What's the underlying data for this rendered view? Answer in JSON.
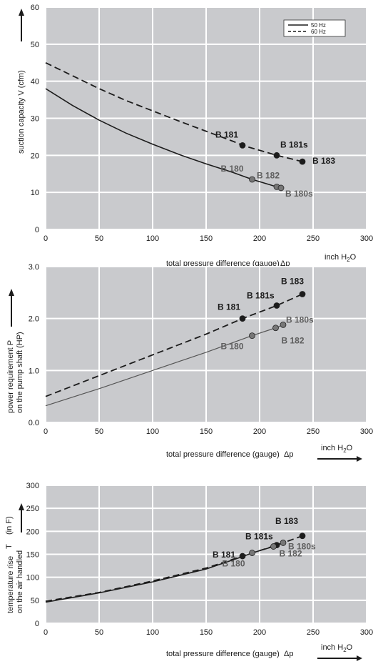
{
  "chart_data": [
    {
      "type": "line",
      "ylabel": "suction capacity V (cfm)",
      "xlabel": "total pressure difference (gauge)",
      "xlabel_symbol": "Δp",
      "unit": "inch H2O",
      "xlim": [
        0,
        300
      ],
      "ylim": [
        0,
        60
      ],
      "xticks": [
        0,
        50,
        100,
        150,
        200,
        250,
        300
      ],
      "yticks": [
        0,
        10,
        20,
        30,
        40,
        50,
        60
      ],
      "grid": true,
      "legend": {
        "position": "top-right",
        "entries": [
          {
            "name": "50 Hz",
            "style": "solid"
          },
          {
            "name": "60 Hz",
            "style": "dashed"
          }
        ]
      },
      "series": [
        {
          "name": "50 Hz",
          "style": "solid",
          "x": [
            0,
            25,
            50,
            75,
            100,
            125,
            150,
            175,
            193,
            216,
            220
          ],
          "y": [
            38,
            33.5,
            29.5,
            26,
            23,
            20.2,
            17.7,
            15.4,
            13.5,
            11.5,
            11.2
          ]
        },
        {
          "name": "60 Hz",
          "style": "dashed",
          "x": [
            0,
            25,
            50,
            75,
            100,
            125,
            150,
            175,
            184,
            216,
            240
          ],
          "y": [
            45,
            41.5,
            38,
            34.8,
            32,
            29.2,
            26.5,
            23.8,
            22.7,
            20,
            18.3
          ]
        }
      ],
      "points": [
        {
          "label": "B 181",
          "x": 184,
          "y": 22.7,
          "tone": "dark"
        },
        {
          "label": "B 181s",
          "x": 216,
          "y": 20,
          "tone": "dark"
        },
        {
          "label": "B 183",
          "x": 240,
          "y": 18.3,
          "tone": "dark"
        },
        {
          "label": "B 180",
          "x": 193,
          "y": 13.5,
          "tone": "gray"
        },
        {
          "label": "B 182",
          "x": 216,
          "y": 11.5,
          "tone": "gray"
        },
        {
          "label": "B 180s",
          "x": 220,
          "y": 11.2,
          "tone": "gray"
        }
      ]
    },
    {
      "type": "line",
      "ylabel": [
        "power requirement P",
        "on the pump shaft (HP)"
      ],
      "xlabel": "total pressure difference (gauge)",
      "xlabel_symbol": "Δp",
      "unit": "inch H2O",
      "xlim": [
        0,
        300
      ],
      "ylim": [
        0,
        3
      ],
      "xticks": [
        0,
        50,
        100,
        150,
        200,
        250,
        300
      ],
      "yticks": [
        "0.0",
        "1.0",
        "2.0",
        "3.0"
      ],
      "grid": true,
      "series": [
        {
          "style": "solid",
          "x": [
            0,
            50,
            100,
            150,
            193,
            215,
            222
          ],
          "y": [
            0.32,
            0.65,
            1.0,
            1.35,
            1.67,
            1.82,
            1.88
          ]
        },
        {
          "style": "dashed",
          "x": [
            0,
            50,
            100,
            150,
            184,
            216,
            240
          ],
          "y": [
            0.5,
            0.9,
            1.3,
            1.7,
            2.0,
            2.25,
            2.47
          ]
        }
      ],
      "points": [
        {
          "label": "B 181",
          "x": 184,
          "y": 2.0,
          "tone": "dark"
        },
        {
          "label": "B 181s",
          "x": 216,
          "y": 2.25,
          "tone": "dark"
        },
        {
          "label": "B 183",
          "x": 240,
          "y": 2.47,
          "tone": "dark"
        },
        {
          "label": "B 180",
          "x": 193,
          "y": 1.67,
          "tone": "gray"
        },
        {
          "label": "B 182",
          "x": 215,
          "y": 1.82,
          "tone": "gray"
        },
        {
          "label": "B 180s",
          "x": 222,
          "y": 1.88,
          "tone": "gray"
        }
      ]
    },
    {
      "type": "line",
      "ylabel": [
        "temperature rise",
        "on the air handled"
      ],
      "ylabel_symbol": "T",
      "ylabel_unit": "(in F)",
      "xlabel": "total pressure difference (gauge)",
      "xlabel_symbol": "Δp",
      "unit": "inch H2O",
      "xlim": [
        0,
        300
      ],
      "ylim": [
        0,
        300
      ],
      "xticks": [
        0,
        50,
        100,
        150,
        200,
        250,
        300
      ],
      "yticks": [
        0,
        50,
        100,
        150,
        200,
        250,
        300
      ],
      "grid": true,
      "series": [
        {
          "style": "solid",
          "x": [
            0,
            50,
            100,
            150,
            184,
            193,
            213,
            216,
            222
          ],
          "y": [
            46,
            66,
            90,
            118,
            145,
            153,
            167,
            170,
            175
          ]
        },
        {
          "style": "dashed",
          "x": [
            0,
            50,
            100,
            150,
            184,
            216,
            240
          ],
          "y": [
            48,
            67,
            92,
            120,
            146,
            170,
            190
          ]
        }
      ],
      "points": [
        {
          "label": "B 181",
          "x": 184,
          "y": 146,
          "tone": "dark"
        },
        {
          "label": "B 181s",
          "x": 216,
          "y": 170,
          "tone": "dark"
        },
        {
          "label": "B 183",
          "x": 240,
          "y": 190,
          "tone": "dark"
        },
        {
          "label": "B 180",
          "x": 193,
          "y": 153,
          "tone": "gray"
        },
        {
          "label": "B 182",
          "x": 213,
          "y": 167,
          "tone": "gray"
        },
        {
          "label": "B 180s",
          "x": 222,
          "y": 175,
          "tone": "gray"
        }
      ]
    }
  ],
  "colors": {
    "plot_bg": "#c9cacd",
    "grid": "#ffffff",
    "dark": "#1c1c1c",
    "gray": "#666666",
    "text": "#1a1a1a"
  }
}
